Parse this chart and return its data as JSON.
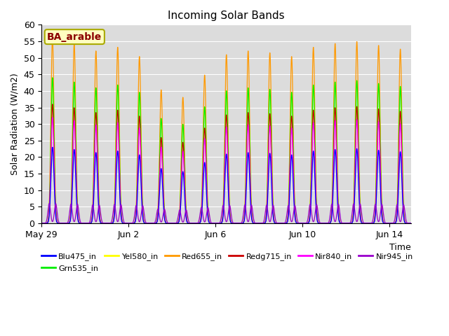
{
  "title": "Incoming Solar Bands",
  "xlabel": "Time",
  "ylabel": "Solar Radiation (W/m2)",
  "annotation": "BA_arable",
  "ylim": [
    0,
    60
  ],
  "background_color": "#dcdcdc",
  "lines": [
    {
      "label": "Blu475_in",
      "color": "#0000ff",
      "peak": 23
    },
    {
      "label": "Grn535_in",
      "color": "#00ee00",
      "peak": 44
    },
    {
      "label": "Yel580_in",
      "color": "#ffff00",
      "peak": 44
    },
    {
      "label": "Red655_in",
      "color": "#ff9900",
      "peak": 56
    },
    {
      "label": "Redg715_in",
      "color": "#cc0000",
      "peak": 36
    },
    {
      "label": "Nir840_in",
      "color": "#ff00ff",
      "peak": 32
    },
    {
      "label": "Nir945_in",
      "color": "#9900cc",
      "peak": 6
    }
  ],
  "num_days": 17,
  "xtick_labels": [
    "May 29",
    "Jun 2",
    "Jun 6",
    "Jun 10",
    "Jun 14"
  ],
  "xtick_positions": [
    0,
    4,
    8,
    12,
    16
  ],
  "yticks": [
    0,
    5,
    10,
    15,
    20,
    25,
    30,
    35,
    40,
    45,
    50,
    55,
    60
  ]
}
